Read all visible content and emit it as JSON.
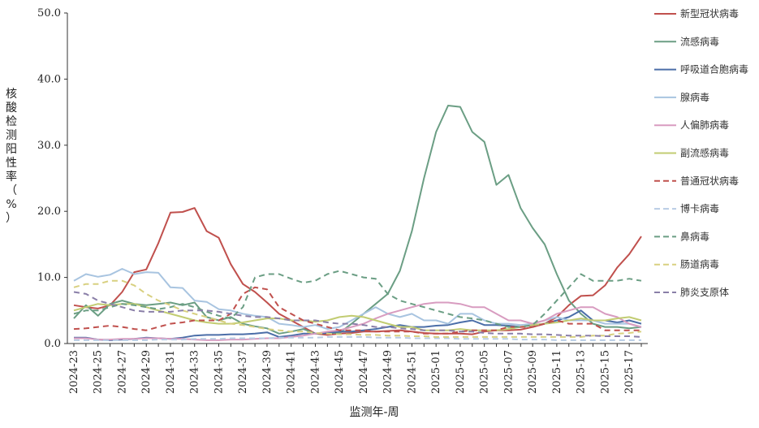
{
  "chart_data": {
    "type": "line",
    "title": "",
    "xlabel": "监测年-周",
    "ylabel": "核酸检测阳性率（%）",
    "ylim": [
      0,
      50
    ],
    "yticks": [
      "0.0",
      "10.0",
      "20.0",
      "30.0",
      "40.0",
      "50.0"
    ],
    "x_tick_labels": [
      "2024-23",
      "2024-25",
      "2024-27",
      "2024-29",
      "2024-31",
      "2024-33",
      "2024-35",
      "2024-37",
      "2024-39",
      "2024-41",
      "2024-43",
      "2024-45",
      "2024-47",
      "2024-49",
      "2024-51",
      "2025-01",
      "2025-03",
      "2025-05",
      "2025-07",
      "2025-09",
      "2025-11",
      "2025-13",
      "2025-15",
      "2025-17"
    ],
    "x": [
      "2024-23",
      "2024-24",
      "2024-25",
      "2024-26",
      "2024-27",
      "2024-28",
      "2024-29",
      "2024-30",
      "2024-31",
      "2024-32",
      "2024-33",
      "2024-34",
      "2024-35",
      "2024-36",
      "2024-37",
      "2024-38",
      "2024-39",
      "2024-40",
      "2024-41",
      "2024-42",
      "2024-43",
      "2024-44",
      "2024-45",
      "2024-46",
      "2024-47",
      "2024-48",
      "2024-49",
      "2024-50",
      "2024-51",
      "2024-52",
      "2025-01",
      "2025-02",
      "2025-03",
      "2025-04",
      "2025-05",
      "2025-06",
      "2025-07",
      "2025-08",
      "2025-09",
      "2025-10",
      "2025-11",
      "2025-12",
      "2025-13",
      "2025-14",
      "2025-15",
      "2025-16",
      "2025-17",
      "2025-18"
    ],
    "grid": false,
    "legend_position": "right",
    "series": [
      {
        "name": "新型冠状病毒",
        "color": "#c0504d",
        "dash": false,
        "values": [
          5.8,
          5.5,
          5.3,
          5.8,
          7.8,
          10.8,
          11.2,
          15.2,
          19.8,
          19.9,
          20.5,
          17.0,
          16.0,
          12.0,
          9.0,
          7.8,
          6.2,
          4.5,
          3.5,
          2.5,
          1.5,
          1.3,
          1.5,
          1.6,
          1.8,
          1.8,
          1.9,
          2.0,
          1.8,
          1.6,
          1.5,
          1.5,
          1.5,
          1.4,
          1.8,
          2.0,
          2.0,
          2.1,
          2.5,
          3.0,
          4.0,
          5.8,
          7.2,
          7.3,
          8.8,
          11.5,
          13.5,
          16.2
        ]
      },
      {
        "name": "流感病毒",
        "color": "#6b9e84",
        "dash": false,
        "values": [
          3.8,
          5.8,
          4.2,
          6.0,
          6.5,
          6.0,
          5.8,
          6.0,
          6.2,
          5.8,
          6.2,
          4.0,
          3.5,
          4.0,
          3.0,
          2.6,
          2.3,
          1.5,
          1.8,
          2.2,
          1.5,
          1.6,
          1.6,
          3.0,
          4.5,
          6.0,
          7.5,
          11.0,
          17.0,
          25.0,
          32.0,
          36.0,
          35.8,
          32.0,
          30.5,
          24.0,
          25.5,
          20.5,
          17.5,
          15.0,
          10.5,
          6.5,
          4.5,
          3.0,
          2.5,
          2.5,
          2.3,
          2.5
        ]
      },
      {
        "name": "呼吸道合胞病毒",
        "color": "#4b6ea8",
        "dash": false,
        "values": [
          0.9,
          0.9,
          0.6,
          0.5,
          0.6,
          0.7,
          0.9,
          0.8,
          0.7,
          0.9,
          1.2,
          1.3,
          1.3,
          1.4,
          1.4,
          1.5,
          1.7,
          1.0,
          1.2,
          1.5,
          1.5,
          1.6,
          1.8,
          1.8,
          2.0,
          2.2,
          2.5,
          2.8,
          2.5,
          2.5,
          2.7,
          2.8,
          3.2,
          3.5,
          2.8,
          2.8,
          2.7,
          2.5,
          2.8,
          3.0,
          3.5,
          4.0,
          5.0,
          3.5,
          3.5,
          3.2,
          3.5,
          3.0
        ]
      },
      {
        "name": "腺病毒",
        "color": "#a8c4e0",
        "dash": false,
        "values": [
          9.5,
          10.5,
          10.1,
          10.4,
          11.3,
          10.5,
          10.8,
          10.7,
          8.5,
          8.4,
          6.5,
          6.3,
          5.2,
          5.0,
          4.5,
          4.2,
          4.0,
          3.0,
          2.8,
          2.5,
          2.8,
          2.2,
          2.5,
          3.5,
          4.5,
          5.5,
          4.5,
          4.0,
          4.5,
          3.5,
          3.5,
          3.0,
          4.5,
          4.5,
          3.5,
          3.0,
          3.0,
          2.8,
          3.0,
          3.5,
          4.0,
          3.5,
          3.5,
          3.5,
          3.0,
          3.0,
          3.0,
          2.5
        ]
      },
      {
        "name": "人偏肺病毒",
        "color": "#d89cc0",
        "dash": false,
        "values": [
          0.8,
          0.8,
          0.6,
          0.6,
          0.7,
          0.7,
          0.8,
          0.8,
          0.7,
          0.7,
          0.6,
          0.5,
          0.5,
          0.6,
          0.6,
          0.7,
          0.8,
          0.8,
          1.0,
          1.2,
          1.5,
          1.8,
          2.0,
          2.5,
          3.0,
          3.8,
          4.5,
          5.0,
          5.5,
          6.0,
          6.2,
          6.2,
          6.0,
          5.5,
          5.5,
          4.5,
          3.5,
          3.5,
          3.0,
          3.5,
          4.5,
          5.0,
          5.5,
          5.5,
          4.5,
          4.0,
          3.0,
          2.5
        ]
      },
      {
        "name": "副流感病毒",
        "color": "#c2cc72",
        "dash": false,
        "values": [
          5.0,
          5.5,
          6.0,
          5.8,
          6.0,
          6.0,
          5.5,
          5.0,
          4.5,
          4.0,
          3.5,
          3.2,
          3.0,
          3.0,
          3.2,
          3.5,
          3.8,
          3.8,
          3.5,
          3.5,
          3.3,
          3.5,
          4.0,
          4.2,
          4.0,
          3.5,
          3.0,
          2.5,
          2.5,
          2.0,
          2.0,
          2.0,
          2.2,
          2.0,
          2.0,
          2.0,
          2.2,
          2.5,
          2.8,
          3.0,
          3.2,
          3.5,
          3.8,
          3.5,
          3.5,
          3.8,
          4.0,
          3.5
        ]
      },
      {
        "name": "普通冠状病毒",
        "color": "#c0504d",
        "dash": true,
        "values": [
          2.2,
          2.3,
          2.5,
          2.7,
          2.5,
          2.2,
          2.0,
          2.5,
          3.0,
          3.2,
          3.5,
          3.5,
          3.5,
          4.5,
          7.5,
          8.5,
          8.2,
          5.5,
          4.5,
          3.5,
          3.0,
          2.5,
          2.0,
          2.0,
          2.0,
          1.8,
          1.8,
          1.8,
          1.8,
          1.5,
          1.5,
          1.5,
          1.8,
          2.0,
          2.0,
          2.0,
          2.5,
          2.5,
          2.5,
          3.0,
          3.5,
          3.0,
          3.0,
          3.0,
          2.0,
          2.0,
          2.0,
          2.0
        ]
      },
      {
        "name": "博卡病毒",
        "color": "#b8cce4",
        "dash": true,
        "values": [
          0.5,
          0.5,
          0.5,
          0.5,
          0.5,
          0.5,
          0.5,
          0.6,
          0.6,
          0.6,
          0.7,
          0.7,
          0.7,
          0.8,
          0.8,
          0.8,
          0.8,
          0.9,
          0.9,
          0.9,
          0.9,
          1.0,
          1.0,
          1.0,
          1.0,
          0.9,
          0.9,
          0.9,
          0.8,
          0.8,
          0.8,
          0.8,
          0.7,
          0.7,
          0.7,
          0.7,
          0.7,
          0.6,
          0.6,
          0.6,
          0.5,
          0.5,
          0.5,
          0.5,
          0.5,
          0.5,
          0.5,
          0.5
        ]
      },
      {
        "name": "鼻病毒",
        "color": "#6b9e84",
        "dash": true,
        "values": [
          4.5,
          5.0,
          5.0,
          5.5,
          6.0,
          5.8,
          5.5,
          5.2,
          5.5,
          6.0,
          5.5,
          4.8,
          4.2,
          3.8,
          5.5,
          10.0,
          10.5,
          10.5,
          9.8,
          9.2,
          9.5,
          10.5,
          11.0,
          10.5,
          10.0,
          9.8,
          7.5,
          6.5,
          6.0,
          5.5,
          5.0,
          4.5,
          4.0,
          3.8,
          3.5,
          3.0,
          2.5,
          2.5,
          2.8,
          4.5,
          6.5,
          8.5,
          10.5,
          9.5,
          9.5,
          9.5,
          9.8,
          9.5
        ]
      },
      {
        "name": "肠道病毒",
        "color": "#d8d080",
        "dash": true,
        "values": [
          8.5,
          9.0,
          9.0,
          9.5,
          9.5,
          8.8,
          7.5,
          6.5,
          5.8,
          5.0,
          4.5,
          4.0,
          3.5,
          3.0,
          2.8,
          2.5,
          2.2,
          2.0,
          1.8,
          1.8,
          1.6,
          1.5,
          1.4,
          1.4,
          1.3,
          1.3,
          1.2,
          1.2,
          1.1,
          1.1,
          1.0,
          1.0,
          1.0,
          1.0,
          1.0,
          1.0,
          1.0,
          1.0,
          1.0,
          1.0,
          1.0,
          1.0,
          1.0,
          1.2,
          1.2,
          1.5,
          1.6,
          1.8
        ]
      },
      {
        "name": "肺炎支原体",
        "color": "#8a7fa8",
        "dash": true,
        "values": [
          7.8,
          7.5,
          6.5,
          6.0,
          5.5,
          5.0,
          4.8,
          4.8,
          4.8,
          5.0,
          5.0,
          5.0,
          4.8,
          4.5,
          4.2,
          4.0,
          4.0,
          3.8,
          3.5,
          3.5,
          3.5,
          3.2,
          3.0,
          3.0,
          2.8,
          2.5,
          2.5,
          2.3,
          2.2,
          2.0,
          2.0,
          2.0,
          1.8,
          1.8,
          1.6,
          1.5,
          1.5,
          1.5,
          1.4,
          1.4,
          1.3,
          1.2,
          1.2,
          1.2,
          1.1,
          1.1,
          1.1,
          1.0
        ]
      }
    ]
  }
}
